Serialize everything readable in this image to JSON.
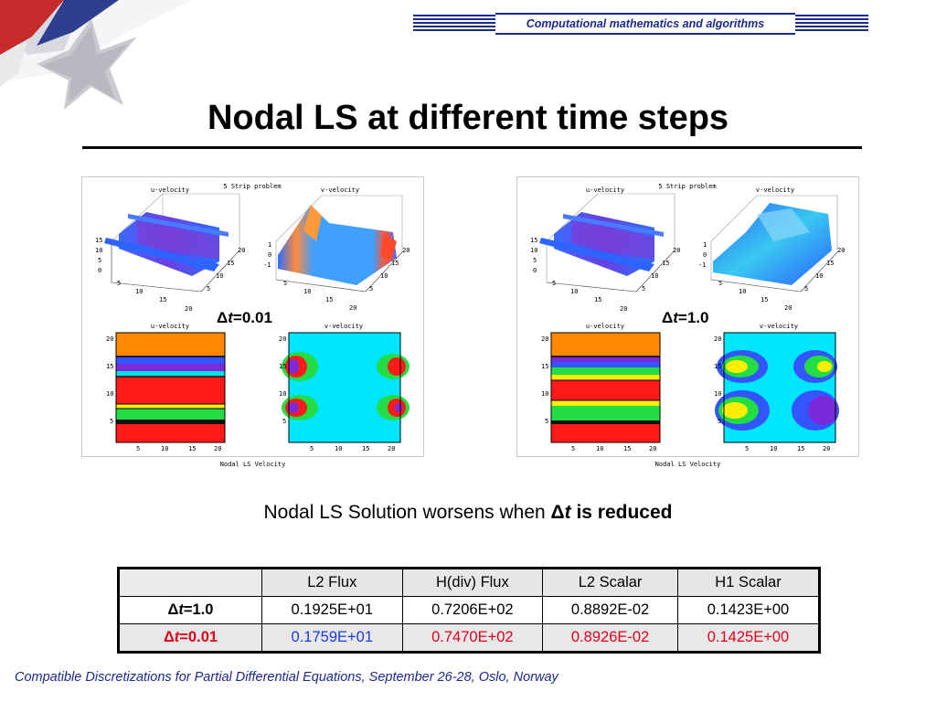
{
  "header": {
    "label": "Computational mathematics and algorithms"
  },
  "title": "Nodal LS at different time steps",
  "panels": [
    {
      "problem_title": "5 Strip problem",
      "u_label": "u-velocity",
      "v_label": "v-velocity",
      "u_contour_label": "u-velocity",
      "v_contour_label": "v-velocity",
      "caption": "Nodal LS Velocity",
      "dt_symbol": "Δ",
      "dt_var": "t",
      "dt_value": "=0.01"
    },
    {
      "problem_title": "5 Strip problem",
      "u_label": "u-velocity",
      "v_label": "v-velocity",
      "u_contour_label": "u-velocity",
      "v_contour_label": "v-velocity",
      "caption": "Nodal LS Velocity",
      "dt_symbol": "Δ",
      "dt_var": "t",
      "dt_value": "=1.0"
    }
  ],
  "ticks": {
    "surface_left": [
      "15",
      "10",
      "5",
      "0"
    ],
    "surface_bottom": [
      "5",
      "10",
      "15",
      "20"
    ],
    "surface_right": [
      "20",
      "15",
      "10",
      "5"
    ],
    "v_surface_left": [
      "1",
      "0",
      "-1"
    ],
    "contour_y": [
      "20",
      "15",
      "10",
      "5"
    ],
    "contour_x": [
      "5",
      "10",
      "15",
      "20"
    ]
  },
  "conclusion": {
    "prefix": "Nodal LS Solution worsens when ",
    "symbol": "Δ",
    "var": "t",
    "suffix": " is reduced"
  },
  "table": {
    "headers": [
      "",
      "L2 Flux",
      "H(div) Flux",
      "L2 Scalar",
      "H1 Scalar"
    ],
    "rows": [
      {
        "symbol": "Δ",
        "var": "t",
        "value": "=1.0",
        "cells": [
          "0.1925E+01",
          "0.7206E+02",
          "0.8892E-02",
          "0.1423E+00"
        ]
      },
      {
        "symbol": "Δ",
        "var": "t",
        "value": "=0.01",
        "cells": [
          "0.1759E+01",
          "0.7470E+02",
          "0.8926E-02",
          "0.1425E+00"
        ]
      }
    ]
  },
  "footer": "Compatible Discretizations for Partial Differential Equations, September 26-28, Oslo, Norway",
  "colors": {
    "accent_blue": "#1a2a8c",
    "highlight_red": "#e0001b",
    "value_blue": "#1b3cd8"
  }
}
